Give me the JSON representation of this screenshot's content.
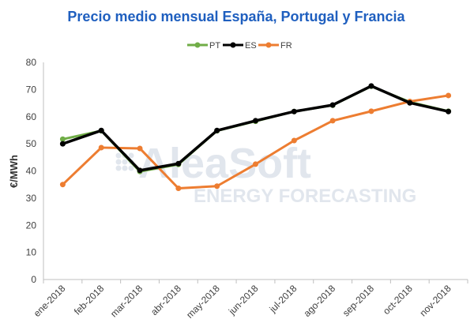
{
  "chart_data": {
    "type": "line",
    "title": "Precio medio mensual España, Portugal  y Francia",
    "ylabel": "€/MWh",
    "xlabel": "",
    "ylim": [
      0,
      80
    ],
    "yticks": [
      0,
      10,
      20,
      30,
      40,
      50,
      60,
      70,
      80
    ],
    "categories": [
      "ene-2018",
      "feb-2018",
      "mar-2018",
      "abr-2018",
      "may-2018",
      "jun-2018",
      "jul-2018",
      "ago-2018",
      "sep-2018",
      "oct-2018",
      "nov-2018"
    ],
    "legend_position": "top",
    "grid": false,
    "series": [
      {
        "name": "PT",
        "color": "#70ad47",
        "values": [
          51.7,
          54.8,
          39.8,
          42.4,
          54.8,
          58.3,
          61.9,
          64.2,
          71.2,
          65.4,
          62.0
        ]
      },
      {
        "name": "ES",
        "color": "#000000",
        "values": [
          50.0,
          54.9,
          40.2,
          42.7,
          54.9,
          58.5,
          61.9,
          64.3,
          71.3,
          65.1,
          61.9
        ]
      },
      {
        "name": "FR",
        "color": "#ed7d31",
        "values": [
          35.0,
          48.6,
          48.3,
          33.6,
          34.4,
          42.5,
          51.2,
          58.5,
          62.0,
          65.6,
          67.8
        ]
      }
    ],
    "watermark": {
      "line1": "AleaSoft",
      "line2": "ENERGY FORECASTING"
    }
  }
}
